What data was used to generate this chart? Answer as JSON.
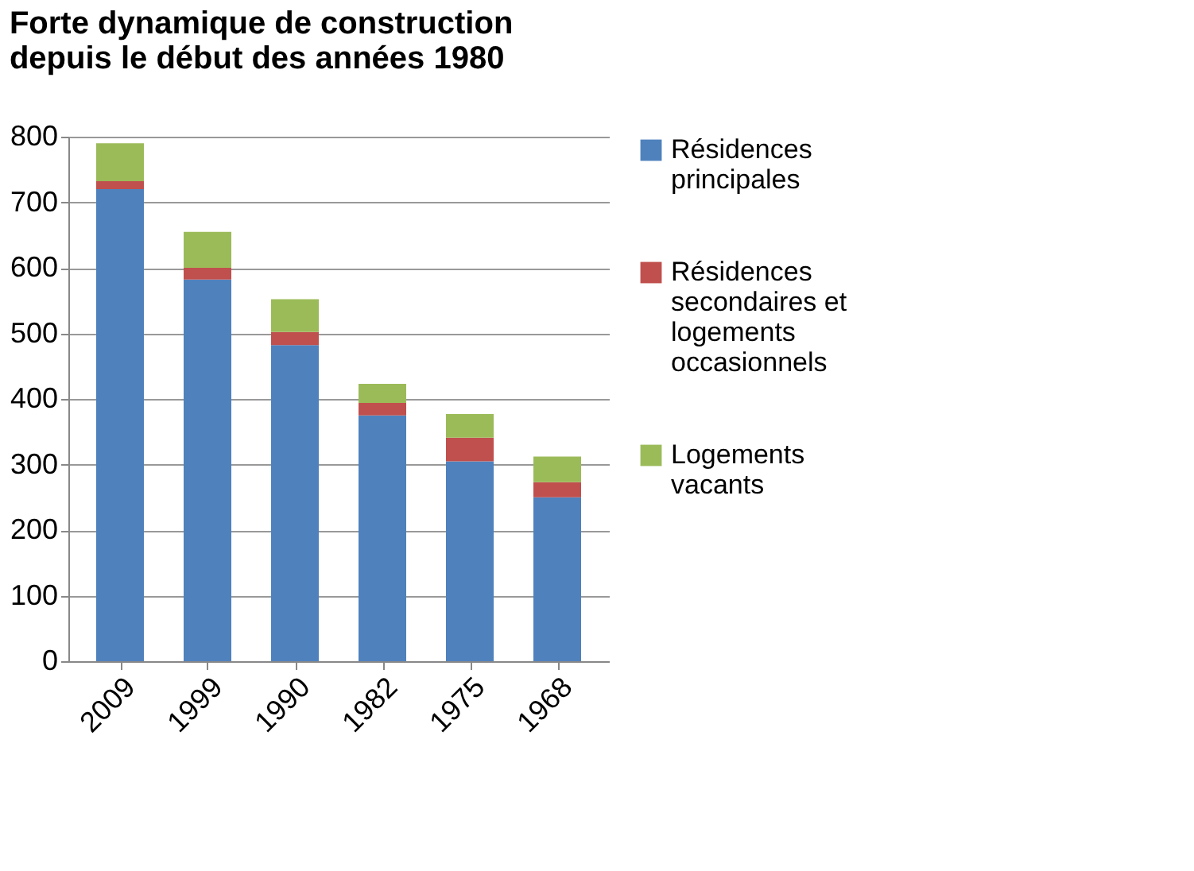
{
  "chart_data": {
    "type": "bar",
    "stacked": true,
    "title": [
      "Forte dynamique de construction",
      "depuis le début des années 1980"
    ],
    "categories": [
      "2009",
      "1999",
      "1990",
      "1982",
      "1975",
      "1968"
    ],
    "series": [
      {
        "name": "Résidences principales",
        "color": "#4f81bd",
        "values": [
          720,
          582,
          482,
          375,
          305,
          250
        ]
      },
      {
        "name": "Résidences secondaires et logements occasionnels",
        "color": "#c0504d",
        "values": [
          12,
          18,
          20,
          19,
          36,
          23
        ]
      },
      {
        "name": "Logements vacants",
        "color": "#9bbb59",
        "values": [
          58,
          55,
          50,
          29,
          36,
          39
        ]
      }
    ],
    "ylim": [
      0,
      800
    ],
    "yticks": [
      0,
      100,
      200,
      300,
      400,
      500,
      600,
      700,
      800
    ],
    "grid": "y",
    "legend": "right"
  }
}
